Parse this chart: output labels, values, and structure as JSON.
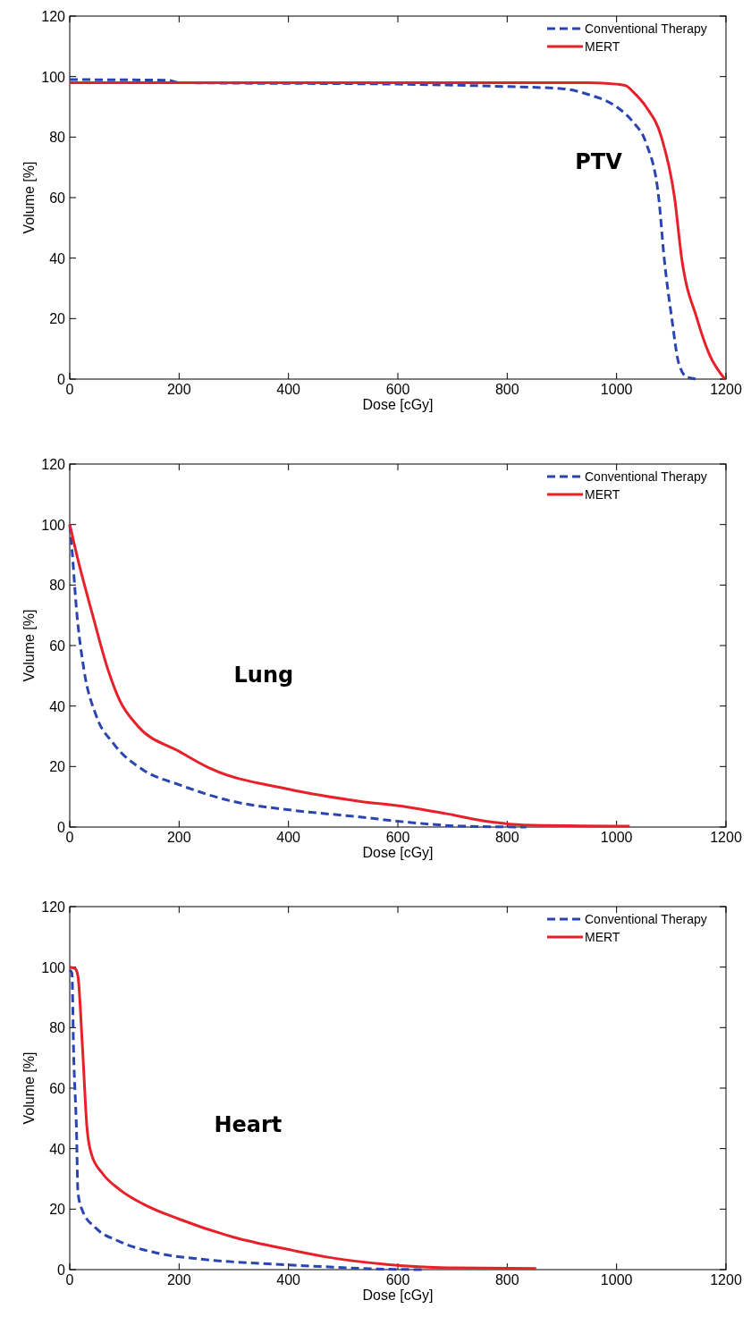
{
  "chart_data": [
    {
      "type": "line",
      "xlabel": "Dose [cGy]",
      "ylabel": "Volume [%]",
      "annotations": [
        "PTV"
      ],
      "xlim": [
        0,
        1200
      ],
      "xticks": [
        0,
        200,
        400,
        600,
        800,
        1000,
        1200
      ],
      "ylim": [
        0,
        120
      ],
      "yticks": [
        0,
        20,
        40,
        60,
        80,
        100,
        120
      ],
      "legend": "top right",
      "grid": false,
      "series": [
        {
          "name": "Conventional Therapy",
          "color": "#2a45b0",
          "line_style": "dashed",
          "x": [
            0,
            180,
            200,
            600,
            800,
            900,
            950,
            1000,
            1030,
            1054,
            1077,
            1087,
            1101,
            1114,
            1130,
            1150
          ],
          "values": [
            99,
            98.8,
            98,
            97.5,
            96.7,
            96,
            94,
            90,
            85,
            78,
            60,
            40,
            20,
            5,
            0.5,
            0
          ]
        },
        {
          "name": "MERT",
          "color": "#e8202a",
          "line_style": "solid",
          "x": [
            0,
            600,
            950,
            1000,
            1017,
            1030,
            1054,
            1082,
            1106,
            1119,
            1147,
            1170,
            1198
          ],
          "values": [
            98,
            98,
            98,
            97.5,
            97,
            95,
            90,
            80,
            60,
            40,
            20,
            8,
            0
          ]
        }
      ]
    },
    {
      "type": "line",
      "xlabel": "Dose [cGy]",
      "ylabel": "Volume [%]",
      "annotations": [
        "Lung"
      ],
      "xlim": [
        0,
        1200
      ],
      "xticks": [
        0,
        200,
        400,
        600,
        800,
        1000,
        1200
      ],
      "ylim": [
        0,
        120
      ],
      "yticks": [
        0,
        20,
        40,
        60,
        80,
        100,
        120
      ],
      "legend": "top right",
      "grid": false,
      "series": [
        {
          "name": "Conventional Therapy",
          "color": "#2a45b0",
          "line_style": "dashed",
          "x": [
            0,
            4,
            12.5,
            26,
            48,
            80,
            135,
            200,
            298,
            405,
            527,
            624,
            716,
            835
          ],
          "values": [
            100,
            92,
            71.6,
            52,
            37,
            27.6,
            18.8,
            14,
            8.5,
            5.6,
            3.4,
            1.5,
            0.3,
            0
          ]
        },
        {
          "name": "MERT",
          "color": "#e8202a",
          "line_style": "solid",
          "x": [
            0,
            15,
            42,
            70,
            91,
            124,
            200,
            254,
            401,
            527,
            618,
            689,
            770,
            830,
            1024
          ],
          "values": [
            100,
            88.4,
            70,
            52,
            42,
            33.5,
            25,
            19.6,
            12.5,
            8.6,
            6.6,
            4.4,
            1.7,
            0.7,
            0.3
          ]
        }
      ]
    },
    {
      "type": "line",
      "xlabel": "Dose [cGy]",
      "ylabel": "Volume [%]",
      "annotations": [
        "Heart"
      ],
      "xlim": [
        0,
        1200
      ],
      "xticks": [
        0,
        200,
        400,
        600,
        800,
        1000,
        1200
      ],
      "ylim": [
        0,
        120
      ],
      "yticks": [
        0,
        20,
        40,
        60,
        80,
        100,
        120
      ],
      "legend": "top right",
      "grid": false,
      "series": [
        {
          "name": "Conventional Therapy",
          "color": "#2a45b0",
          "line_style": "dashed",
          "x": [
            0,
            4,
            7,
            12.5,
            15,
            23,
            48,
            91,
            162,
            243,
            352,
            461,
            550,
            645
          ],
          "values": [
            99,
            98,
            72.5,
            45,
            25.5,
            19.6,
            13.7,
            9.3,
            5.4,
            3.4,
            2,
            1,
            0.3,
            0
          ]
        },
        {
          "name": "MERT",
          "color": "#e8202a",
          "line_style": "solid",
          "x": [
            0,
            10,
            15,
            23,
            31.5,
            40,
            59,
            91,
            135,
            200,
            298,
            407,
            472,
            580,
            690,
            853
          ],
          "values": [
            100,
            99.5,
            97,
            74.5,
            47,
            38,
            32,
            26.5,
            21.6,
            16.7,
            10.8,
            6.4,
            4.1,
            1.7,
            0.6,
            0.4
          ]
        }
      ]
    }
  ]
}
